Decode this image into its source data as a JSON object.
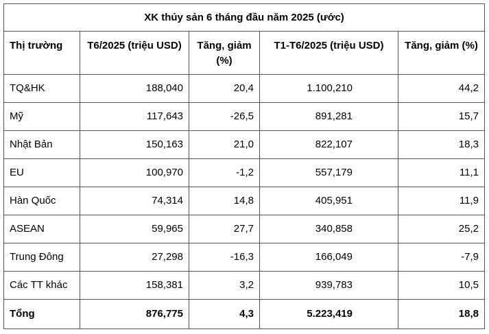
{
  "table": {
    "title": "XK thủy sản 6 tháng đầu năm 2025 (ước)",
    "headers": {
      "market": "Thị trường",
      "t6_value": "T6/2025 (triệu USD)",
      "t6_change": "Tăng, giảm (%)",
      "ytd_value": "T1-T6/2025 (triệu USD)",
      "ytd_change": "Tăng, giảm (%)"
    },
    "rows": [
      {
        "market": "TQ&HK",
        "t6_value": "188,040",
        "t6_change": "20,4",
        "ytd_value": "1.100,210",
        "ytd_change": "44,2"
      },
      {
        "market": "Mỹ",
        "t6_value": "117,643",
        "t6_change": "-26,5",
        "ytd_value": "891,281",
        "ytd_change": "15,7"
      },
      {
        "market": "Nhật Bản",
        "t6_value": "150,163",
        "t6_change": "21,0",
        "ytd_value": "822,107",
        "ytd_change": "18,3"
      },
      {
        "market": "EU",
        "t6_value": "100,970",
        "t6_change": "-1,2",
        "ytd_value": "557,179",
        "ytd_change": "11,1"
      },
      {
        "market": "Hàn Quốc",
        "t6_value": "74,314",
        "t6_change": "14,8",
        "ytd_value": "405,951",
        "ytd_change": "11,9"
      },
      {
        "market": "ASEAN",
        "t6_value": "59,965",
        "t6_change": "27,7",
        "ytd_value": "340,858",
        "ytd_change": "25,2"
      },
      {
        "market": "Trung Đông",
        "t6_value": "27,298",
        "t6_change": "-16,3",
        "ytd_value": "166,049",
        "ytd_change": "-7,9"
      },
      {
        "market": "Các TT khác",
        "t6_value": "158,381",
        "t6_change": "3,2",
        "ytd_value": "939,783",
        "ytd_change": "10,5"
      }
    ],
    "total": {
      "market": "Tổng",
      "t6_value": "876,775",
      "t6_change": "4,3",
      "ytd_value": "5.223,419",
      "ytd_change": "18,8"
    }
  },
  "colors": {
    "border": "#555555",
    "text": "#000000",
    "background": "#ffffff"
  }
}
